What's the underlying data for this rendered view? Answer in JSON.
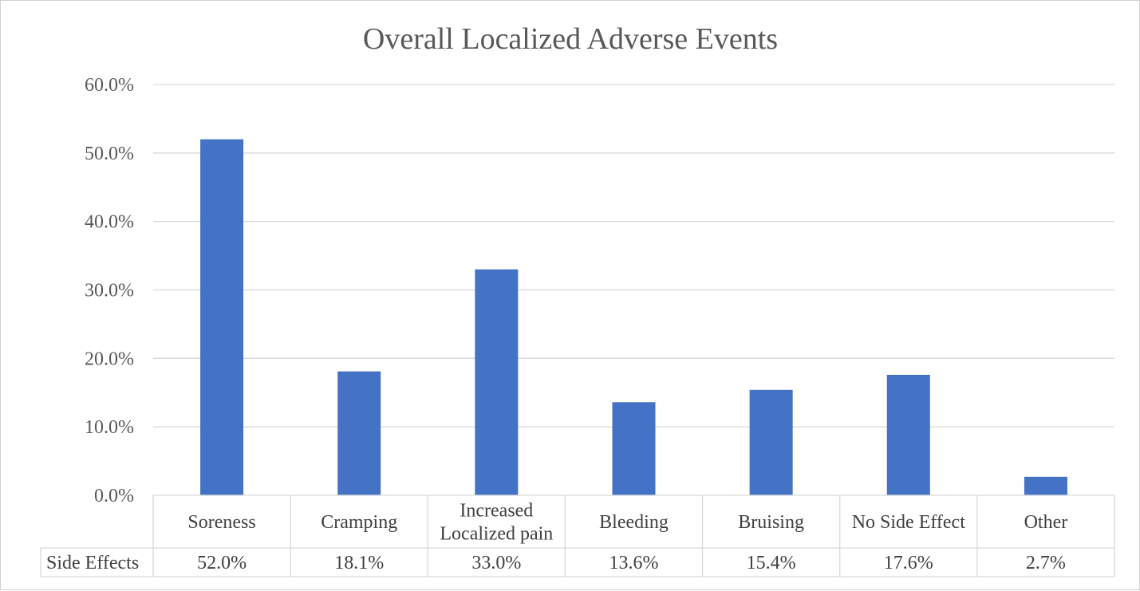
{
  "chart_data": {
    "type": "bar",
    "title": "Overall Localized Adverse Events",
    "categories": [
      [
        "Soreness"
      ],
      [
        "Cramping"
      ],
      [
        "Increased",
        "Localized pain"
      ],
      [
        "Bleeding"
      ],
      [
        "Bruising"
      ],
      [
        "No Side Effect"
      ],
      [
        "Other"
      ]
    ],
    "series": [
      {
        "name": "Side Effects",
        "values": [
          52.0,
          18.1,
          33.0,
          13.6,
          15.4,
          17.6,
          2.7
        ],
        "labels": [
          "52.0%",
          "18.1%",
          "33.0%",
          "13.6%",
          "15.4%",
          "17.6%",
          "2.7%"
        ],
        "color": "#4472c4"
      }
    ],
    "ylim": [
      0,
      60
    ],
    "yticks": [
      "0.0%",
      "10.0%",
      "20.0%",
      "30.0%",
      "40.0%",
      "50.0%",
      "60.0%"
    ],
    "grid": true,
    "data_table": true,
    "gridline_color": "#d9d9d9"
  }
}
